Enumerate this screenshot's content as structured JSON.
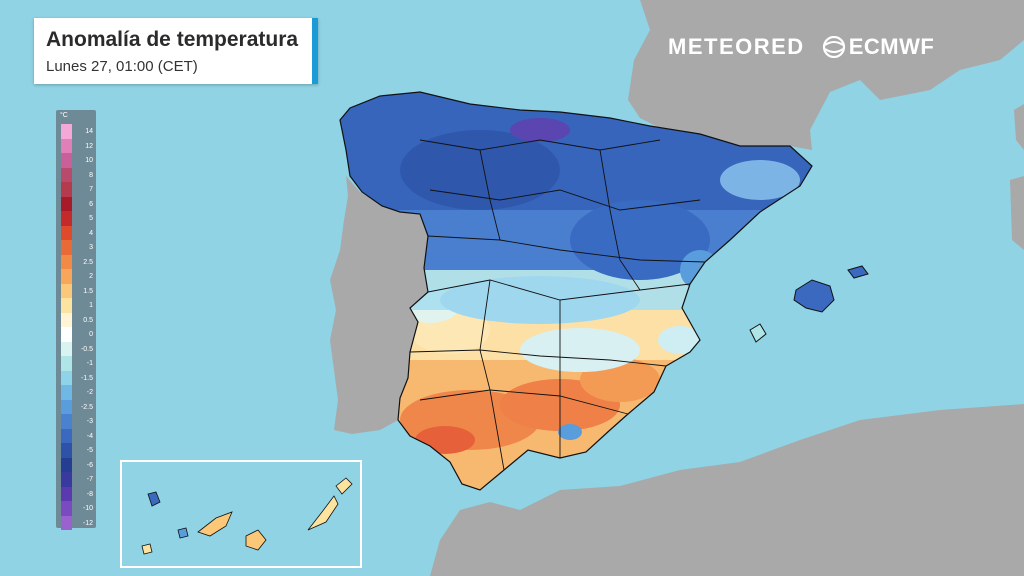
{
  "title": {
    "main": "Anomalía de temperatura",
    "subtitle": "Lunes 27, 01:00 (CET)"
  },
  "logos": {
    "meteored": "METEORED",
    "ecmwf": "ECMWF",
    "ecmwf_icon": "ecmwf-swirl-icon"
  },
  "legend": {
    "unit": "°C",
    "items": [
      {
        "label": "14",
        "color": "#f5a8d6"
      },
      {
        "label": "12",
        "color": "#e07fb8"
      },
      {
        "label": "10",
        "color": "#c9609a"
      },
      {
        "label": "8",
        "color": "#b84a6b"
      },
      {
        "label": "7",
        "color": "#b53a4e"
      },
      {
        "label": "6",
        "color": "#a8192a"
      },
      {
        "label": "5",
        "color": "#c52a2a"
      },
      {
        "label": "4",
        "color": "#de4a2a"
      },
      {
        "label": "3",
        "color": "#ea6a35"
      },
      {
        "label": "2.5",
        "color": "#f28a45"
      },
      {
        "label": "2",
        "color": "#f7a65a"
      },
      {
        "label": "1.5",
        "color": "#fbc879"
      },
      {
        "label": "1",
        "color": "#fde3a0"
      },
      {
        "label": "0.5",
        "color": "#fff4d6"
      },
      {
        "label": "0",
        "color": "#ffffff"
      },
      {
        "label": "-0.5",
        "color": "#d9f4f0"
      },
      {
        "label": "-1",
        "color": "#aee6e8"
      },
      {
        "label": "-1.5",
        "color": "#8fd3e8"
      },
      {
        "label": "-2",
        "color": "#6fb7e4"
      },
      {
        "label": "-2.5",
        "color": "#5a9ddc"
      },
      {
        "label": "-3",
        "color": "#4a82d0"
      },
      {
        "label": "-4",
        "color": "#3b69bf"
      },
      {
        "label": "-5",
        "color": "#2e52a8"
      },
      {
        "label": "-6",
        "color": "#243f91"
      },
      {
        "label": "-7",
        "color": "#3a3a9e"
      },
      {
        "label": "-8",
        "color": "#5a3aae"
      },
      {
        "label": "-10",
        "color": "#7a4ac0"
      },
      {
        "label": "-12",
        "color": "#9a62cf"
      }
    ]
  },
  "colors": {
    "sea": "#8fd3e4",
    "land": "#a9a9a9",
    "inset_border": "#ffffff",
    "boundaries": "#111111"
  }
}
